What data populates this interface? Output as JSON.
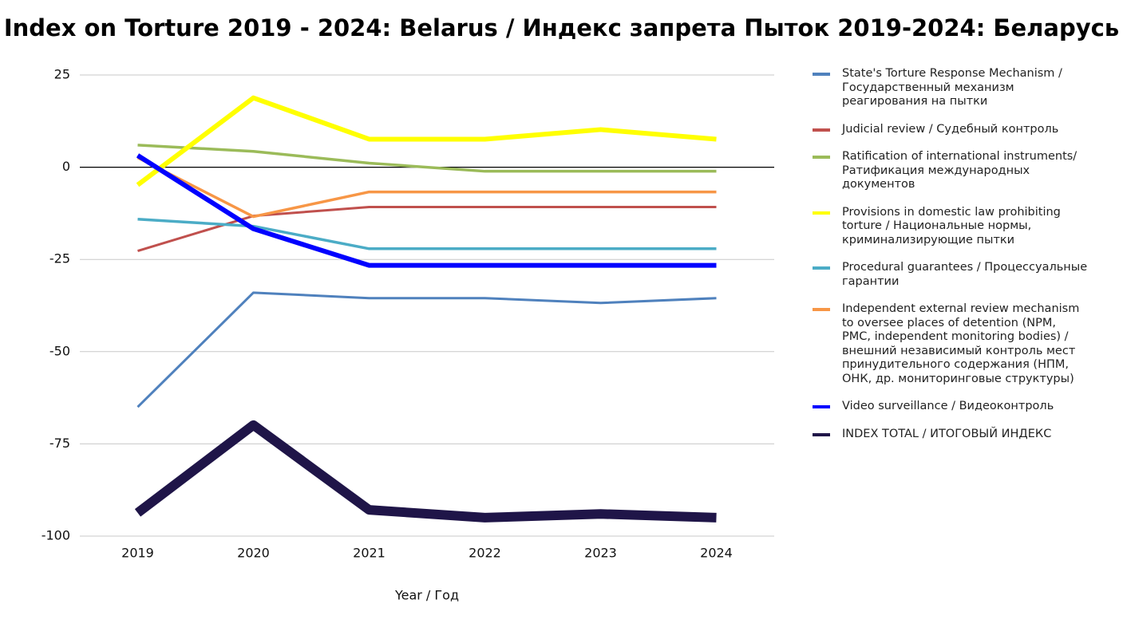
{
  "chart_data": {
    "type": "line",
    "title": "Index on Torture 2019 - 2024: Belarus / Индекс запрета Пыток 2019-2024: Беларусь",
    "x_label": "Year / Год",
    "categories": [
      "2019",
      "2020",
      "2021",
      "2022",
      "2023",
      "2024"
    ],
    "ylim": [
      -100,
      25
    ],
    "yticks": [
      25,
      0,
      -25,
      -50,
      -75,
      -100
    ],
    "grid": true,
    "series": [
      {
        "name": "State's Torture Response Mechanism / Государственный механизм реагирования на пытки",
        "color": "#4f81bd",
        "values": [
          -65,
          -34,
          -35.5,
          -35.5,
          -36.8,
          -35.5
        ]
      },
      {
        "name": "Judicial review / Судебный контроль",
        "color": "#c0504d",
        "values": [
          -22.7,
          -13.2,
          -10.8,
          -10.8,
          -10.8,
          -10.8
        ]
      },
      {
        "name": "Ratification of international instruments/ Ратификация международных документов",
        "color": "#9bbb59",
        "values": [
          6,
          4.3,
          1.1,
          -1.1,
          -1.1,
          -1.1
        ]
      },
      {
        "name": "Provisions in domestic law prohibiting torture / Национальные нормы, криминализирующие пытки",
        "color": "#ffff00",
        "values": [
          -4.8,
          18.8,
          7.6,
          7.6,
          10.2,
          7.6
        ]
      },
      {
        "name": "Procedural guarantees / Процессуальные гарантии",
        "color": "#4bacc6",
        "values": [
          -14.1,
          -16,
          -22.1,
          -22.1,
          -22.1,
          -22.1
        ]
      },
      {
        "name": "Independent external review mechanism to oversee places of detention (NPM, PMC, independent monitoring bodies) / внешний независимый контроль мест принудительного содержания (НПМ, ОНК, др. мониторинговые структуры)",
        "color": "#f79646",
        "values": [
          2.6,
          -13.4,
          -6.7,
          -6.7,
          -6.7,
          -6.7
        ]
      },
      {
        "name": "Video surveillance / Видеоконтроль",
        "color": "#0000ff",
        "values": [
          3.2,
          -16.7,
          -26.6,
          -26.6,
          -26.6,
          -26.6
        ]
      },
      {
        "name": "INDEX TOTAL /  ИТОГОВЫЙ ИНДЕКС",
        "color": "#1f1548",
        "values": [
          -93.7,
          -69.9,
          -92.9,
          -95,
          -94,
          -95
        ]
      }
    ]
  }
}
